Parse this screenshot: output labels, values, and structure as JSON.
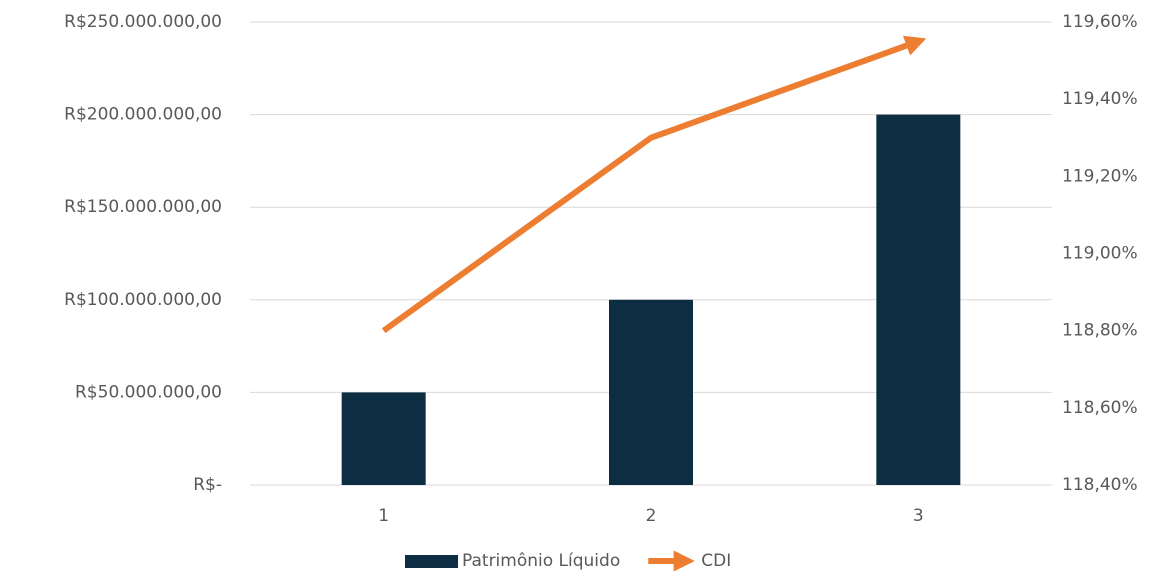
{
  "chart_data": {
    "type": "bar",
    "categories": [
      "1",
      "2",
      "3"
    ],
    "series": [
      {
        "name": "Patrimônio Líquido",
        "type": "bar",
        "color": "#0d2e42",
        "values": [
          50000000,
          100000000,
          200000000
        ]
      },
      {
        "name": "CDI",
        "type": "line",
        "axis": "y2",
        "color": "#ed7d31",
        "values": [
          118.8,
          119.3,
          119.55
        ]
      }
    ],
    "ylim": [
      0,
      250000000
    ],
    "yticks": [
      {
        "value": 0,
        "label": "R$-"
      },
      {
        "value": 50000000,
        "label": "R$50.000.000,00"
      },
      {
        "value": 100000000,
        "label": "R$100.000.000,00"
      },
      {
        "value": 150000000,
        "label": "R$150.000.000,00"
      },
      {
        "value": 200000000,
        "label": "R$200.000.000,00"
      },
      {
        "value": 250000000,
        "label": "R$250.000.000,00"
      }
    ],
    "y2lim": [
      118.4,
      119.6
    ],
    "y2ticks": [
      {
        "value": 118.4,
        "label": "118,40%"
      },
      {
        "value": 118.6,
        "label": "118,60%"
      },
      {
        "value": 118.8,
        "label": "118,80%"
      },
      {
        "value": 119.0,
        "label": "119,00%"
      },
      {
        "value": 119.2,
        "label": "119,20%"
      },
      {
        "value": 119.4,
        "label": "119,40%"
      },
      {
        "value": 119.6,
        "label": "119,60%"
      }
    ],
    "grid": true,
    "legend": "bottom"
  }
}
